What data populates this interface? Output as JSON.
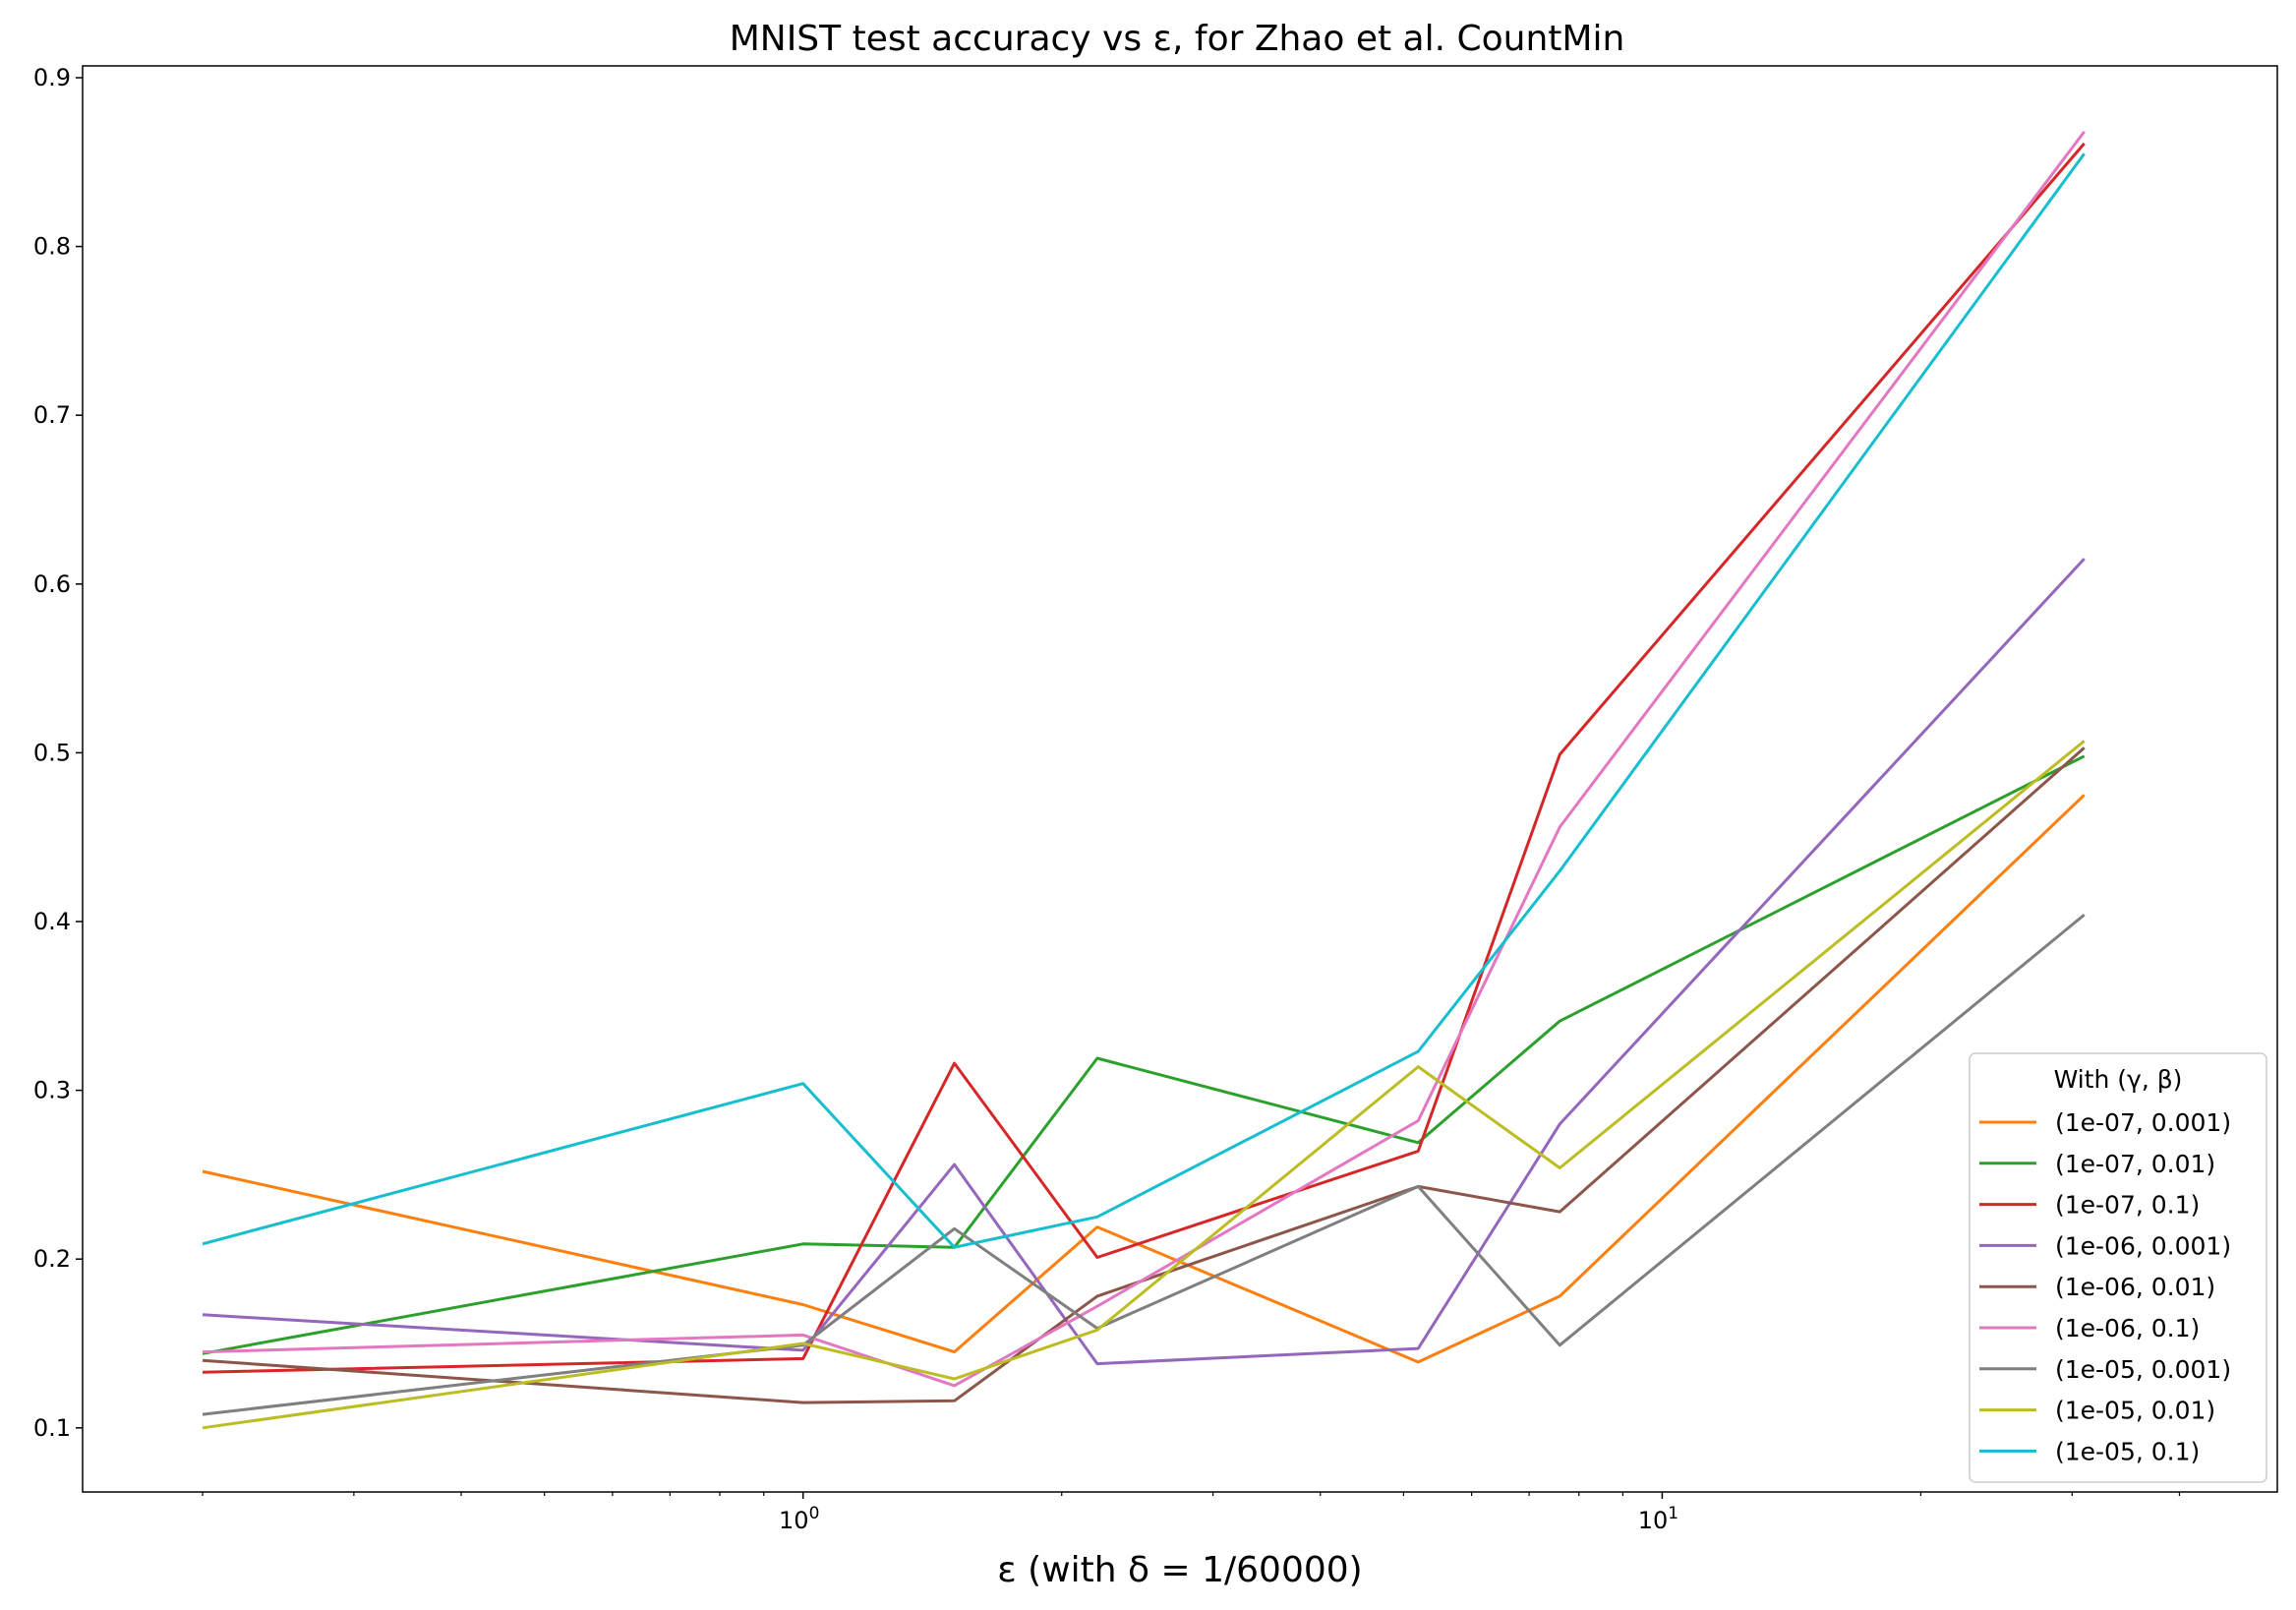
{
  "chart_data": {
    "type": "line",
    "title": "MNIST test accuracy vs ε, for Zhao et al. CountMin",
    "xlabel": "ε (with δ = 1/60000)",
    "ylabel": "",
    "x_scale": "log",
    "ylim": [
      0.062,
      0.907
    ],
    "xlim": [
      0.145,
      52
    ],
    "grid": false,
    "legend": {
      "title": "With (γ, β)",
      "position": "lower-right"
    },
    "x": [
      0.2,
      1.0,
      1.5,
      2.2,
      5.2,
      7.6,
      31.0
    ],
    "y_ticks": [
      {
        "value": 0.1,
        "label": "0.1"
      },
      {
        "value": 0.2,
        "label": "0.2"
      },
      {
        "value": 0.3,
        "label": "0.3"
      },
      {
        "value": 0.4,
        "label": "0.4"
      },
      {
        "value": 0.5,
        "label": "0.5"
      },
      {
        "value": 0.6,
        "label": "0.6"
      },
      {
        "value": 0.7,
        "label": "0.7"
      },
      {
        "value": 0.8,
        "label": "0.8"
      },
      {
        "value": 0.9,
        "label": "0.9"
      }
    ],
    "x_major_ticks": [
      {
        "value": 1,
        "label_base": "10",
        "label_exp": "0"
      },
      {
        "value": 10,
        "label_base": "10",
        "label_exp": "1"
      }
    ],
    "x_minor_ticks": [
      0.2,
      0.3,
      0.4,
      0.5,
      0.6,
      0.7,
      0.8,
      0.9,
      2,
      3,
      4,
      5,
      6,
      7,
      8,
      9,
      20,
      30,
      40
    ],
    "series": [
      {
        "name": "(1e-07, 0.001)",
        "color": "#ff7f0e",
        "values": [
          0.252,
          0.173,
          0.145,
          0.219,
          0.139,
          0.178,
          0.475
        ]
      },
      {
        "name": "(1e-07, 0.01)",
        "color": "#2ca02c",
        "values": [
          0.144,
          0.209,
          0.207,
          0.319,
          0.269,
          0.341,
          0.498
        ]
      },
      {
        "name": "(1e-07, 0.1)",
        "color": "#d62728",
        "values": [
          0.133,
          0.141,
          0.316,
          0.201,
          0.264,
          0.499,
          0.861
        ]
      },
      {
        "name": "(1e-06, 0.001)",
        "color": "#9467bd",
        "values": [
          0.167,
          0.146,
          0.256,
          0.138,
          0.147,
          0.28,
          0.615
        ]
      },
      {
        "name": "(1e-06, 0.01)",
        "color": "#8c564b",
        "values": [
          0.14,
          0.115,
          0.116,
          0.178,
          0.243,
          0.228,
          0.503
        ]
      },
      {
        "name": "(1e-06, 0.1)",
        "color": "#e377c2",
        "values": [
          0.145,
          0.155,
          0.125,
          0.172,
          0.282,
          0.456,
          0.868
        ]
      },
      {
        "name": "(1e-05, 0.001)",
        "color": "#7f7f7f",
        "values": [
          0.108,
          0.149,
          0.218,
          0.159,
          0.243,
          0.149,
          0.404
        ]
      },
      {
        "name": "(1e-05, 0.01)",
        "color": "#bcbd22",
        "values": [
          0.1,
          0.15,
          0.129,
          0.158,
          0.314,
          0.254,
          0.507
        ]
      },
      {
        "name": "(1e-05, 0.1)",
        "color": "#17becf",
        "values": [
          0.209,
          0.304,
          0.207,
          0.225,
          0.323,
          0.43,
          0.855
        ]
      }
    ]
  }
}
